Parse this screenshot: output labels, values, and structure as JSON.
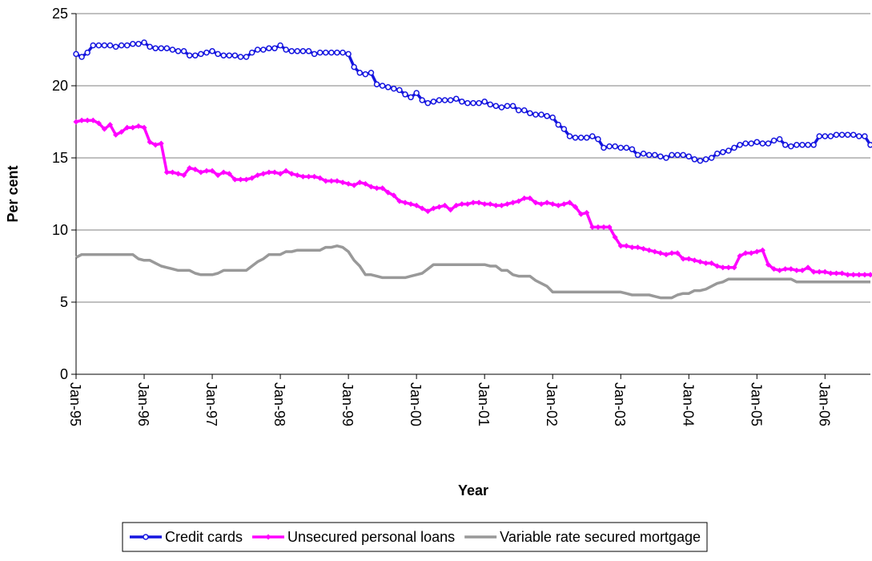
{
  "chart_data": {
    "type": "line",
    "y_label": "Per cent",
    "x_label": "Year",
    "categories": [
      "Jan-95",
      null,
      null,
      null,
      null,
      null,
      null,
      null,
      null,
      null,
      null,
      null,
      "Jan-96",
      null,
      null,
      null,
      null,
      null,
      null,
      null,
      null,
      null,
      null,
      null,
      "Jan-97",
      null,
      null,
      null,
      null,
      null,
      null,
      null,
      null,
      null,
      null,
      null,
      "Jan-98",
      null,
      null,
      null,
      null,
      null,
      null,
      null,
      null,
      null,
      null,
      null,
      "Jan-99",
      null,
      null,
      null,
      null,
      null,
      null,
      null,
      null,
      null,
      null,
      null,
      "Jan-00",
      null,
      null,
      null,
      null,
      null,
      null,
      null,
      null,
      null,
      null,
      null,
      "Jan-01",
      null,
      null,
      null,
      null,
      null,
      null,
      null,
      null,
      null,
      null,
      null,
      "Jan-02",
      null,
      null,
      null,
      null,
      null,
      null,
      null,
      null,
      null,
      null,
      null,
      "Jan-03",
      null,
      null,
      null,
      null,
      null,
      null,
      null,
      null,
      null,
      null,
      null,
      "Jan-04",
      null,
      null,
      null,
      null,
      null,
      null,
      null,
      null,
      null,
      null,
      null,
      "Jan-05",
      null,
      null,
      null,
      null,
      null,
      null,
      null,
      null,
      null,
      null,
      null,
      "Jan-06",
      null,
      null,
      null,
      null,
      null,
      null,
      null,
      null
    ],
    "series": [
      {
        "name": "Credit cards",
        "color": "#1515e0",
        "marker": "circle",
        "values": [
          22.2,
          22.0,
          22.3,
          22.8,
          22.8,
          22.8,
          22.8,
          22.7,
          22.8,
          22.8,
          22.9,
          22.9,
          23.0,
          22.7,
          22.6,
          22.6,
          22.6,
          22.5,
          22.4,
          22.4,
          22.1,
          22.1,
          22.2,
          22.3,
          22.4,
          22.2,
          22.1,
          22.1,
          22.1,
          22.0,
          22.0,
          22.3,
          22.5,
          22.5,
          22.6,
          22.6,
          22.8,
          22.5,
          22.4,
          22.4,
          22.4,
          22.4,
          22.2,
          22.3,
          22.3,
          22.3,
          22.3,
          22.3,
          22.2,
          21.3,
          20.9,
          20.8,
          20.9,
          20.1,
          20.0,
          19.9,
          19.8,
          19.7,
          19.4,
          19.2,
          19.5,
          19.0,
          18.8,
          18.9,
          19.0,
          19.0,
          19.0,
          19.1,
          18.9,
          18.8,
          18.8,
          18.8,
          18.9,
          18.7,
          18.6,
          18.5,
          18.6,
          18.6,
          18.3,
          18.3,
          18.1,
          18.0,
          18.0,
          17.9,
          17.8,
          17.3,
          17.0,
          16.5,
          16.4,
          16.4,
          16.4,
          16.5,
          16.3,
          15.7,
          15.8,
          15.8,
          15.7,
          15.7,
          15.6,
          15.2,
          15.3,
          15.2,
          15.2,
          15.1,
          15.0,
          15.2,
          15.2,
          15.2,
          15.1,
          14.9,
          14.8,
          14.9,
          15.0,
          15.3,
          15.4,
          15.5,
          15.7,
          15.9,
          16.0,
          16.0,
          16.1,
          16.0,
          16.0,
          16.2,
          16.3,
          15.9,
          15.8,
          15.9,
          15.9,
          15.9,
          15.9,
          16.5,
          16.5,
          16.5,
          16.6,
          16.6,
          16.6,
          16.6,
          16.5,
          16.5,
          15.9
        ]
      },
      {
        "name": "Unsecured personal loans",
        "color": "#ff00ff",
        "marker": "diamond",
        "values": [
          17.5,
          17.6,
          17.6,
          17.6,
          17.4,
          17.0,
          17.3,
          16.6,
          16.8,
          17.1,
          17.1,
          17.2,
          17.1,
          16.1,
          15.9,
          16.0,
          14.0,
          14.0,
          13.9,
          13.8,
          14.3,
          14.2,
          14.0,
          14.1,
          14.1,
          13.8,
          14.0,
          13.9,
          13.5,
          13.5,
          13.5,
          13.6,
          13.8,
          13.9,
          14.0,
          14.0,
          13.9,
          14.1,
          13.9,
          13.8,
          13.7,
          13.7,
          13.7,
          13.6,
          13.4,
          13.4,
          13.4,
          13.3,
          13.2,
          13.1,
          13.3,
          13.2,
          13.0,
          12.9,
          12.9,
          12.6,
          12.4,
          12.0,
          11.9,
          11.8,
          11.7,
          11.5,
          11.3,
          11.5,
          11.6,
          11.7,
          11.4,
          11.7,
          11.8,
          11.8,
          11.9,
          11.9,
          11.8,
          11.8,
          11.7,
          11.7,
          11.8,
          11.9,
          12.0,
          12.2,
          12.2,
          11.9,
          11.8,
          11.9,
          11.8,
          11.7,
          11.8,
          11.9,
          11.6,
          11.1,
          11.2,
          10.2,
          10.2,
          10.2,
          10.2,
          9.5,
          8.9,
          8.9,
          8.8,
          8.8,
          8.7,
          8.6,
          8.5,
          8.4,
          8.3,
          8.4,
          8.4,
          8.0,
          8.0,
          7.9,
          7.8,
          7.7,
          7.7,
          7.5,
          7.4,
          7.4,
          7.4,
          8.2,
          8.4,
          8.4,
          8.5,
          8.6,
          7.6,
          7.3,
          7.2,
          7.3,
          7.3,
          7.2,
          7.2,
          7.4,
          7.1,
          7.1,
          7.1,
          7.0,
          7.0,
          7.0,
          6.9,
          6.9,
          6.9,
          6.9,
          6.9
        ]
      },
      {
        "name": "Variable rate secured mortgage",
        "color": "#999999",
        "marker": "none",
        "values": [
          8.1,
          8.3,
          8.3,
          8.3,
          8.3,
          8.3,
          8.3,
          8.3,
          8.3,
          8.3,
          8.3,
          8.0,
          7.9,
          7.9,
          7.7,
          7.5,
          7.4,
          7.3,
          7.2,
          7.2,
          7.2,
          7.0,
          6.9,
          6.9,
          6.9,
          7.0,
          7.2,
          7.2,
          7.2,
          7.2,
          7.2,
          7.5,
          7.8,
          8.0,
          8.3,
          8.3,
          8.3,
          8.5,
          8.5,
          8.6,
          8.6,
          8.6,
          8.6,
          8.6,
          8.8,
          8.8,
          8.9,
          8.8,
          8.5,
          7.9,
          7.5,
          6.9,
          6.9,
          6.8,
          6.7,
          6.7,
          6.7,
          6.7,
          6.7,
          6.8,
          6.9,
          7.0,
          7.3,
          7.6,
          7.6,
          7.6,
          7.6,
          7.6,
          7.6,
          7.6,
          7.6,
          7.6,
          7.6,
          7.5,
          7.5,
          7.2,
          7.2,
          6.9,
          6.8,
          6.8,
          6.8,
          6.5,
          6.3,
          6.1,
          5.7,
          5.7,
          5.7,
          5.7,
          5.7,
          5.7,
          5.7,
          5.7,
          5.7,
          5.7,
          5.7,
          5.7,
          5.7,
          5.6,
          5.5,
          5.5,
          5.5,
          5.5,
          5.4,
          5.3,
          5.3,
          5.3,
          5.5,
          5.6,
          5.6,
          5.8,
          5.8,
          5.9,
          6.1,
          6.3,
          6.4,
          6.6,
          6.6,
          6.6,
          6.6,
          6.6,
          6.6,
          6.6,
          6.6,
          6.6,
          6.6,
          6.6,
          6.6,
          6.4,
          6.4,
          6.4,
          6.4,
          6.4,
          6.4,
          6.4,
          6.4,
          6.4,
          6.4,
          6.4,
          6.4,
          6.4,
          6.4
        ]
      }
    ],
    "ylim": [
      0,
      25
    ],
    "yticks": [
      0,
      5,
      10,
      15,
      20,
      25
    ],
    "grid": true,
    "legend": "bottom"
  }
}
